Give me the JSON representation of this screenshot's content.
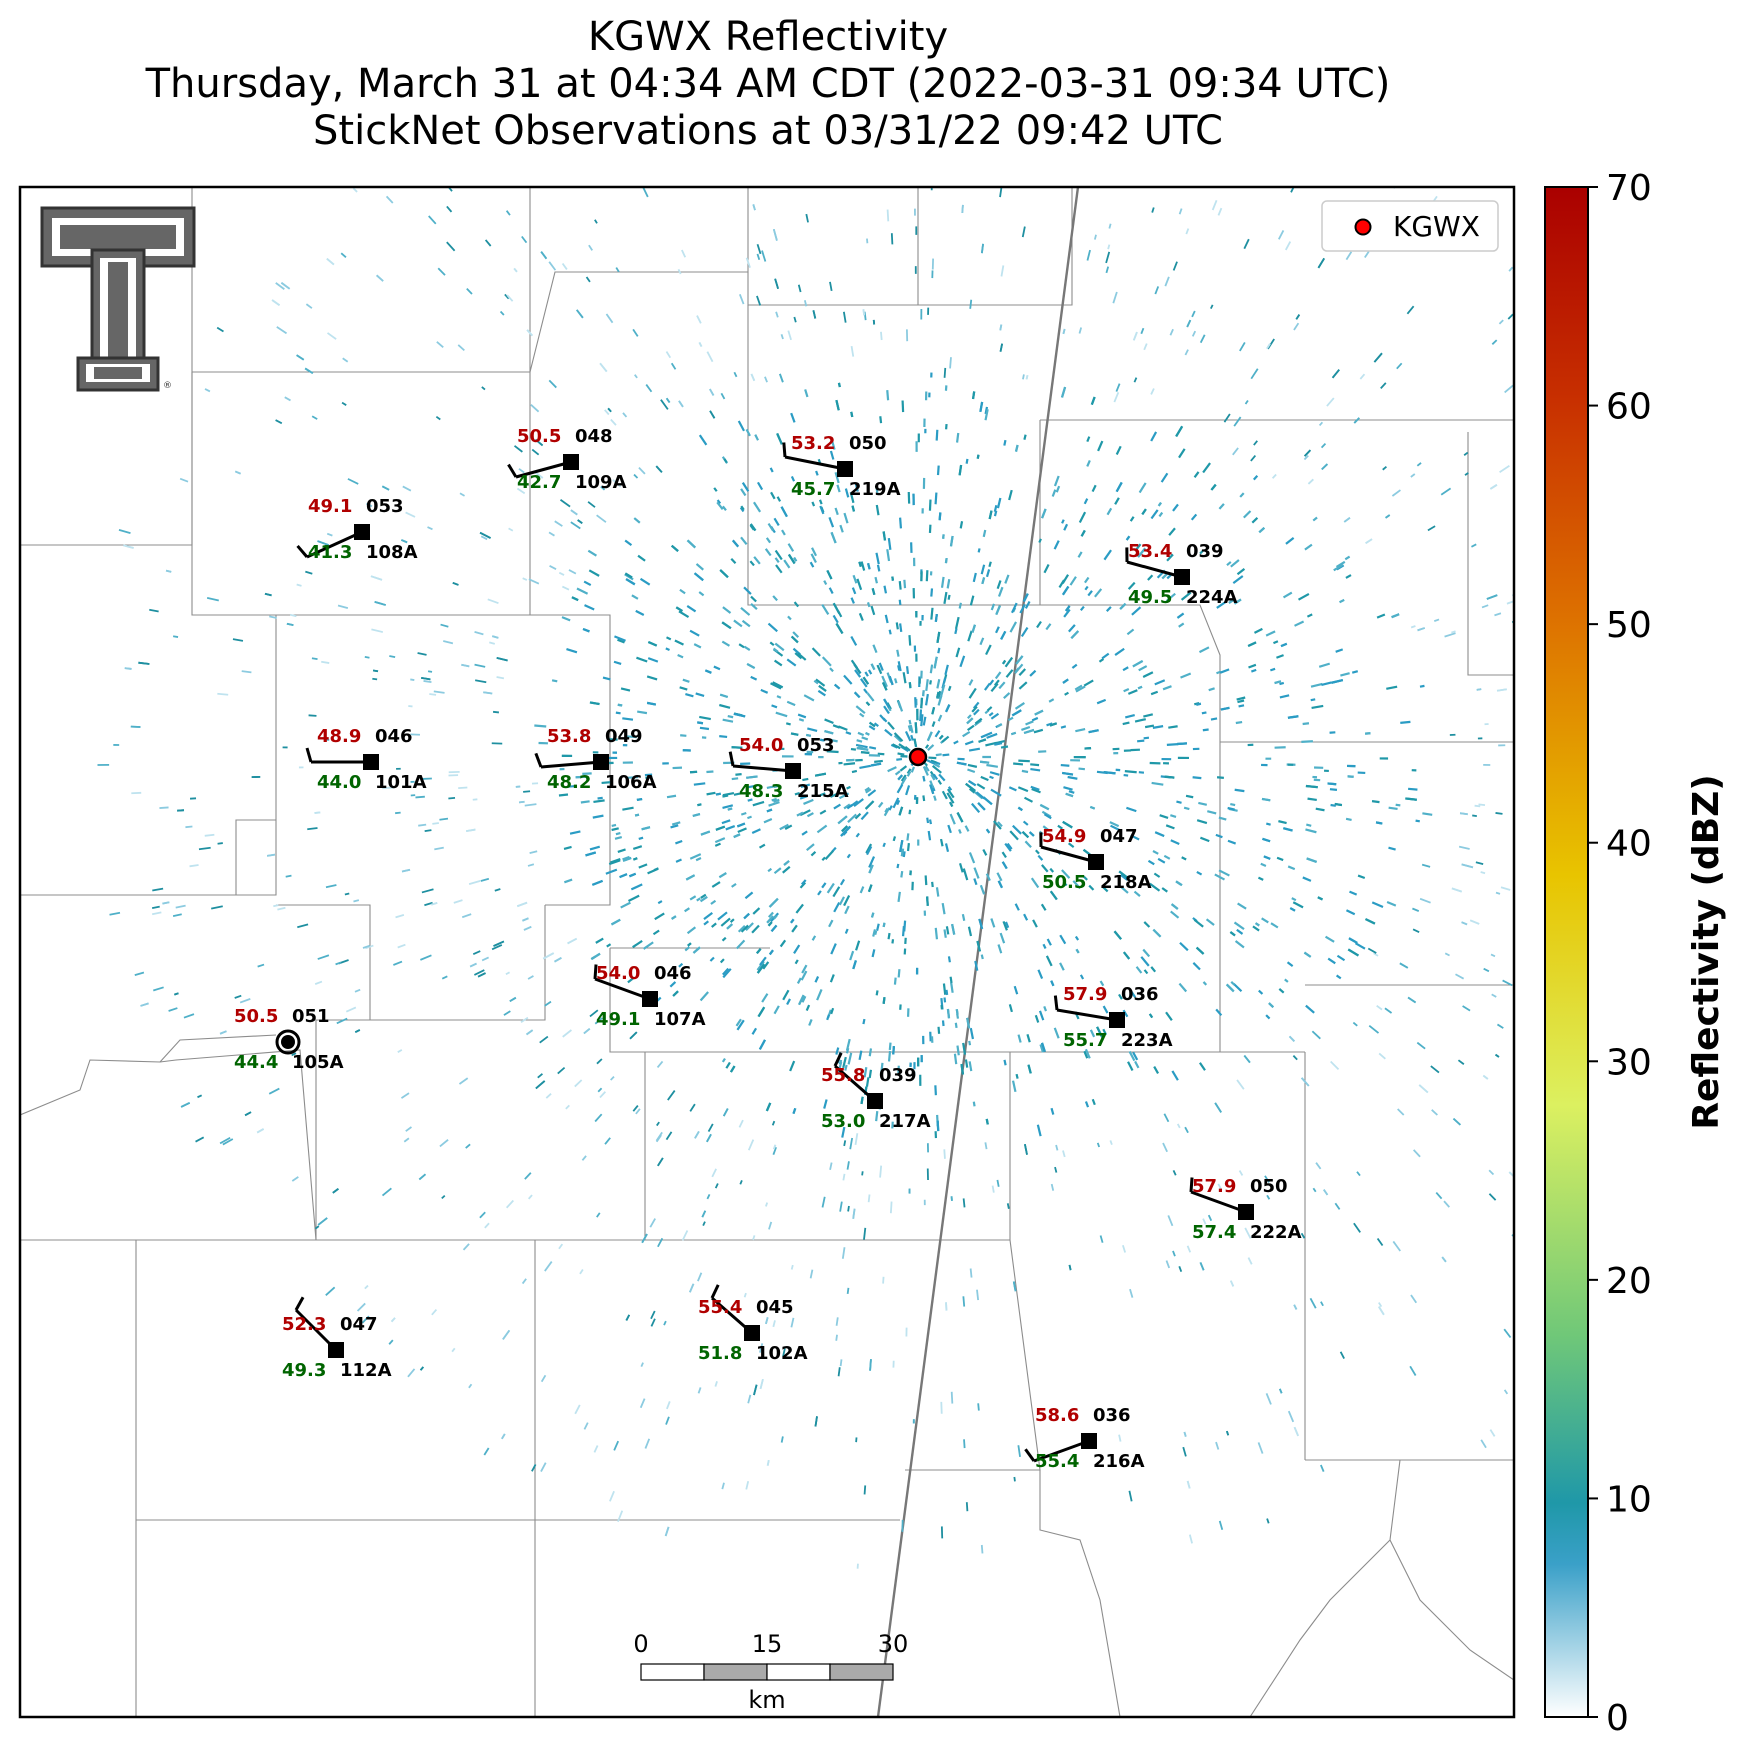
{
  "title_lines": [
    "KGWX Reflectivity",
    "Thursday, March 31 at 04:34 AM CDT (2022-03-31 09:34 UTC)",
    "StickNet Observations at 03/31/22 09:42 UTC"
  ],
  "legend": {
    "label": "KGWX",
    "marker_color": "#ff0000"
  },
  "colorbar": {
    "label": "Reflectivity (dBZ)",
    "ticks": [
      "0",
      "10",
      "20",
      "30",
      "40",
      "50",
      "60",
      "70"
    ],
    "range": [
      0,
      70
    ]
  },
  "scale_bar": {
    "ticks": [
      "0",
      "15",
      "30"
    ],
    "unit": "km"
  },
  "stations": [
    {
      "id": "108A",
      "temp": "49.1",
      "dew": "41.3",
      "pres": "053"
    },
    {
      "id": "109A",
      "temp": "50.5",
      "dew": "42.7",
      "pres": "048"
    },
    {
      "id": "219A",
      "temp": "53.2",
      "dew": "45.7",
      "pres": "050"
    },
    {
      "id": "224A",
      "temp": "53.4",
      "dew": "49.5",
      "pres": "039"
    },
    {
      "id": "101A",
      "temp": "48.9",
      "dew": "44.0",
      "pres": "046"
    },
    {
      "id": "106A",
      "temp": "53.8",
      "dew": "48.2",
      "pres": "049"
    },
    {
      "id": "215A",
      "temp": "54.0",
      "dew": "48.3",
      "pres": "053"
    },
    {
      "id": "218A",
      "temp": "54.9",
      "dew": "50.5",
      "pres": "047"
    },
    {
      "id": "107A",
      "temp": "54.0",
      "dew": "49.1",
      "pres": "046"
    },
    {
      "id": "105A",
      "temp": "50.5",
      "dew": "44.4",
      "pres": "051"
    },
    {
      "id": "223A",
      "temp": "57.9",
      "dew": "55.7",
      "pres": "036"
    },
    {
      "id": "217A",
      "temp": "55.8",
      "dew": "53.0",
      "pres": "039"
    },
    {
      "id": "222A",
      "temp": "57.9",
      "dew": "57.4",
      "pres": "050"
    },
    {
      "id": "112A",
      "temp": "52.3",
      "dew": "49.3",
      "pres": "047"
    },
    {
      "id": "102A",
      "temp": "55.4",
      "dew": "51.8",
      "pres": "045"
    },
    {
      "id": "216A",
      "temp": "58.6",
      "dew": "55.4",
      "pres": "036"
    }
  ]
}
